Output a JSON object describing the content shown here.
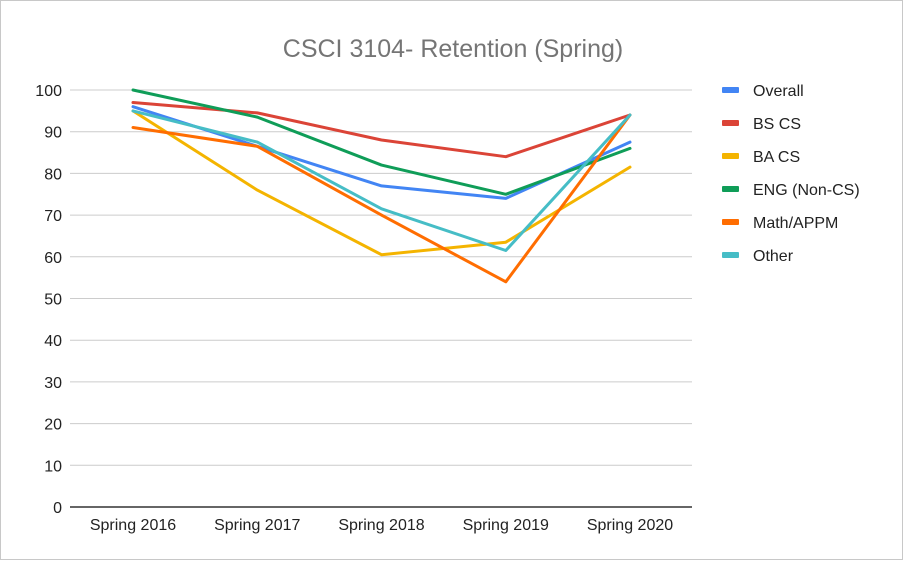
{
  "chart_data": {
    "type": "line",
    "title": "CSCI 3104- Retention (Spring)",
    "xlabel": "",
    "ylabel": "",
    "ylim": [
      0,
      100
    ],
    "yticks": [
      0,
      10,
      20,
      30,
      40,
      50,
      60,
      70,
      80,
      90,
      100
    ],
    "grid": true,
    "legend_position": "right",
    "categories": [
      "Spring 2016",
      "Spring 2017",
      "Spring 2018",
      "Spring 2019",
      "Spring 2020"
    ],
    "series": [
      {
        "name": "Overall",
        "color": "#4285f4",
        "values": [
          96,
          86.5,
          77,
          74,
          87.5
        ]
      },
      {
        "name": "BS CS",
        "color": "#db4437",
        "values": [
          97,
          94.5,
          88,
          84,
          94
        ]
      },
      {
        "name": "BA CS",
        "color": "#f4b400",
        "values": [
          95,
          76,
          60.5,
          63.5,
          81.5
        ]
      },
      {
        "name": "ENG (Non-CS)",
        "color": "#0f9d58",
        "values": [
          100,
          93.5,
          82,
          75,
          86
        ]
      },
      {
        "name": "Math/APPM",
        "color": "#ff6d01",
        "values": [
          91,
          86.5,
          70,
          54,
          94
        ]
      },
      {
        "name": "Other",
        "color": "#46bdc6",
        "values": [
          95,
          87.5,
          71.5,
          61.5,
          94
        ]
      }
    ]
  }
}
